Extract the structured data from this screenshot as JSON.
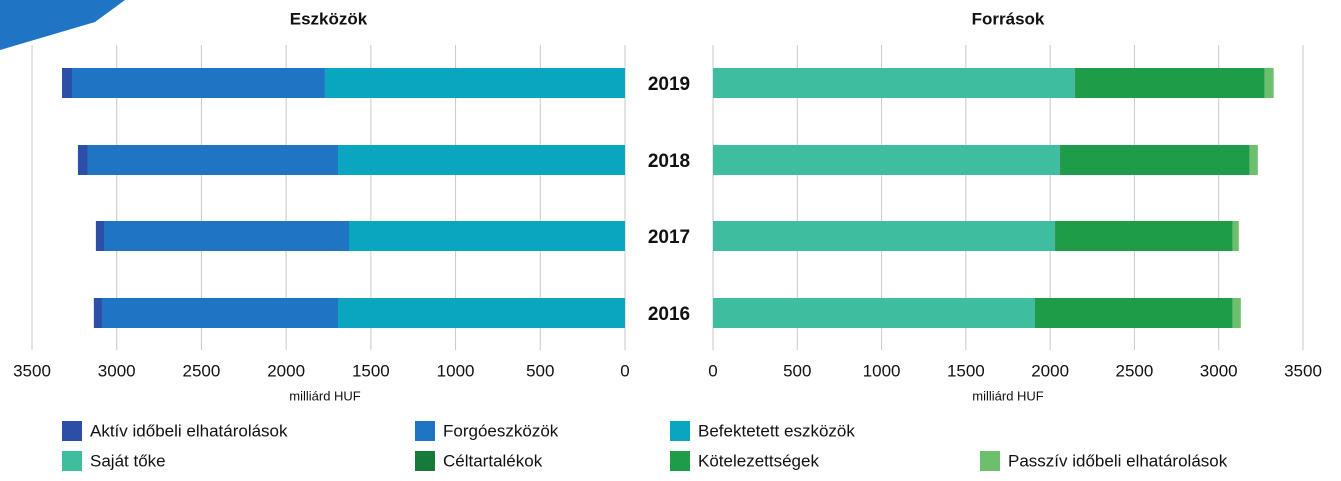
{
  "chart_data": [
    {
      "type": "bar",
      "orientation": "horizontal",
      "stacked": true,
      "title": "Eszközök",
      "xlabel": "milliárd HUF",
      "categories": [
        "2019",
        "2018",
        "2017",
        "2016"
      ],
      "xlim": [
        3500,
        0
      ],
      "xticks": [
        3500,
        3000,
        2500,
        2000,
        1500,
        1000,
        500,
        0
      ],
      "grid": true,
      "series": [
        {
          "name": "Aktív időbeli elhatárolások",
          "color": "#2b4fa6",
          "values": [
            59,
            59,
            48,
            48
          ]
        },
        {
          "name": "Forgóeszközök",
          "color": "#1f74c4",
          "values": [
            1493,
            1476,
            1446,
            1393
          ]
        },
        {
          "name": "Befektetett eszközök",
          "color": "#0aa6c0",
          "values": [
            1771,
            1694,
            1629,
            1694
          ]
        }
      ]
    },
    {
      "type": "bar",
      "orientation": "horizontal",
      "stacked": true,
      "title": "Források",
      "xlabel": "milliárd HUF",
      "xlim": [
        0,
        3500
      ],
      "xticks": [
        0,
        500,
        1000,
        1500,
        2000,
        2500,
        3000,
        3500
      ],
      "grid": true,
      "series": [
        {
          "name": "Saját tőke",
          "color": "#3fbd9f",
          "values": [
            2147,
            2058,
            2028,
            1910
          ]
        },
        {
          "name": "Céltartalékok",
          "color": "#157a3a",
          "values": [
            5,
            5,
            5,
            5
          ]
        },
        {
          "name": "Kötelezettségek",
          "color": "#1e9c48",
          "values": [
            1121,
            1121,
            1050,
            1168
          ]
        },
        {
          "name": "Passzív időbeli elhatárolások",
          "color": "#6dc06b",
          "values": [
            53,
            48,
            36,
            48
          ]
        }
      ]
    }
  ]
}
